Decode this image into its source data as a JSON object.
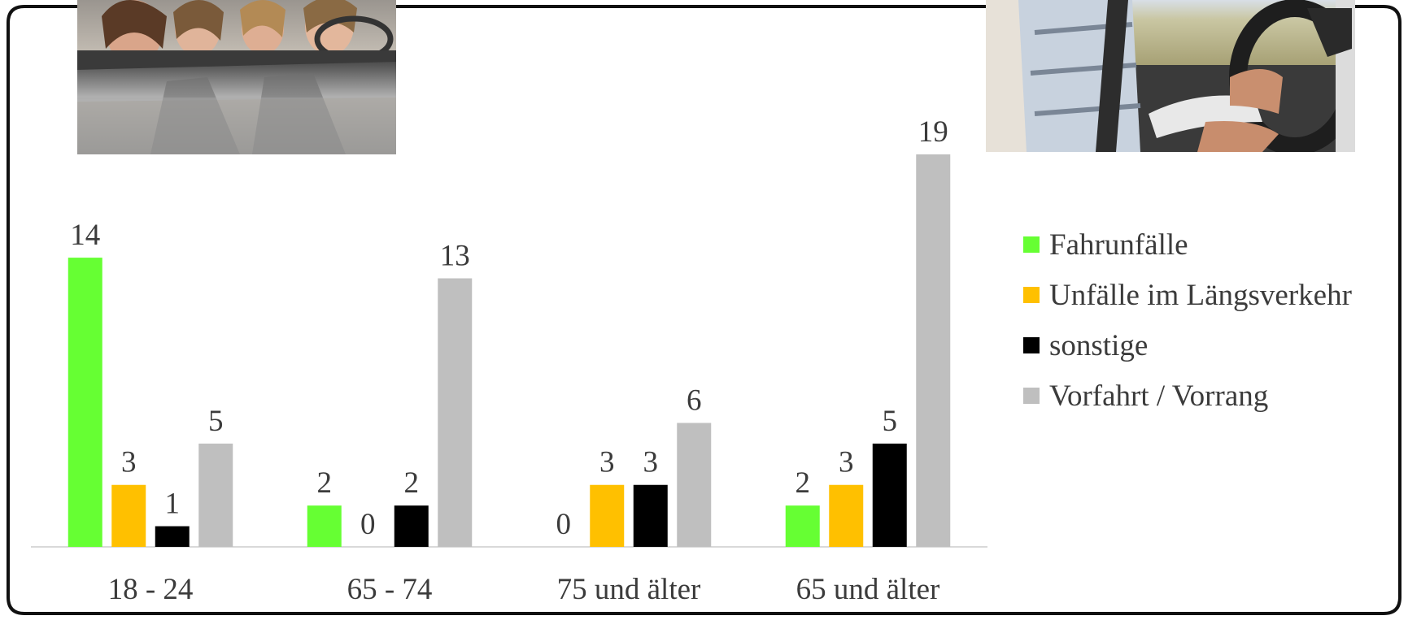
{
  "chart_data": {
    "type": "bar",
    "categories": [
      "18 - 24",
      "65 - 74",
      "75 und älter",
      "65 und älter"
    ],
    "series": [
      {
        "name": "Fahrunfälle",
        "color": "#66ff33",
        "values": [
          14,
          2,
          0,
          2
        ]
      },
      {
        "name": "Unfälle im Längsverkehr",
        "color": "#ffc000",
        "values": [
          3,
          0,
          3,
          3
        ]
      },
      {
        "name": "sonstige",
        "color": "#000000",
        "values": [
          1,
          2,
          3,
          5
        ]
      },
      {
        "name": "Vorfahrt / Vorrang",
        "color": "#bfbfbf",
        "values": [
          5,
          13,
          6,
          19
        ]
      }
    ],
    "data_labels": true,
    "grid": false,
    "legend_position": "right",
    "ylim": [
      0,
      19
    ]
  },
  "photos": {
    "left": "young-passengers-photo",
    "right": "senior-driver-photo"
  }
}
